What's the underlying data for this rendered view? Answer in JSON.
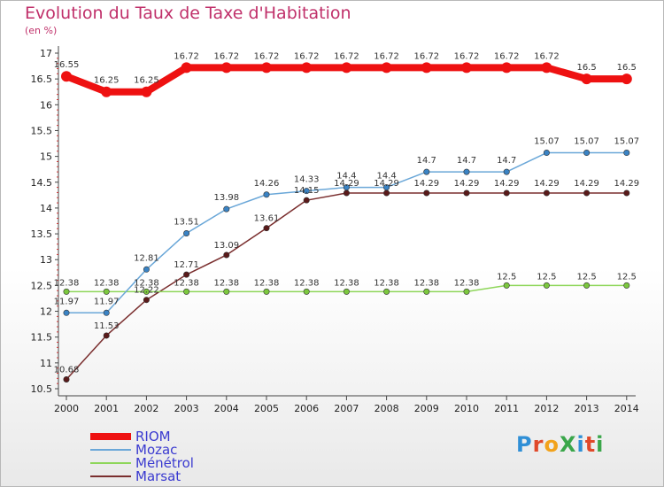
{
  "title": "Evolution du Taux de Taxe d'Habitation",
  "subtitle": "(en %)",
  "logo_text": "ProXiti",
  "logo_colors": [
    "#2f8fd6",
    "#e0492a",
    "#f2a21b",
    "#3aa64a",
    "#2f8fd6",
    "#e0492a",
    "#3aa64a"
  ],
  "chart_data": {
    "type": "line",
    "title": "Evolution du Taux de Taxe d'Habitation",
    "subtitle": "(en %)",
    "xlabel": "",
    "ylabel": "(en %)",
    "x": [
      "2000",
      "2001",
      "2002",
      "2003",
      "2004",
      "2005",
      "2006",
      "2007",
      "2008",
      "2009",
      "2010",
      "2011",
      "2012",
      "2013",
      "2014"
    ],
    "ylim": [
      10.5,
      17
    ],
    "yticks": [
      "10.5",
      "11",
      "11.5",
      "12",
      "12.5",
      "13",
      "13.5",
      "14",
      "14.5",
      "15",
      "15.5",
      "16",
      "16.5",
      "17"
    ],
    "grid": false,
    "legend_position": "bottom-left",
    "series": [
      {
        "name": "RIOM",
        "color": "#ee1111",
        "values": [
          16.55,
          16.25,
          16.25,
          16.72,
          16.72,
          16.72,
          16.72,
          16.72,
          16.72,
          16.72,
          16.72,
          16.72,
          16.72,
          16.5,
          16.5
        ],
        "labels": [
          "16.55",
          "16.25",
          "16.25",
          "16.72",
          "16.72",
          "16.72",
          "16.72",
          "16.72",
          "16.72",
          "16.72",
          "16.72",
          "16.72",
          "16.72",
          "16.5",
          "16.5"
        ]
      },
      {
        "name": "Mozac",
        "color": "#6aa7d8",
        "values": [
          11.97,
          11.97,
          12.81,
          13.51,
          13.98,
          14.26,
          14.33,
          14.4,
          14.4,
          14.7,
          14.7,
          14.7,
          15.07,
          15.07,
          15.07
        ],
        "labels": [
          "11.97",
          "11.97",
          "12.81",
          "13.51",
          "13.98",
          "14.26",
          "14.33",
          "14.4",
          "14.4",
          "14.7",
          "14.7",
          "14.7",
          "15.07",
          "15.07",
          "15.07"
        ]
      },
      {
        "name": "Ménétrol",
        "color": "#8ed65a",
        "values": [
          12.38,
          12.38,
          12.38,
          12.38,
          12.38,
          12.38,
          12.38,
          12.38,
          12.38,
          12.38,
          12.38,
          12.5,
          12.5,
          12.5,
          12.5
        ],
        "labels": [
          "12.38",
          "12.38",
          "12.38",
          "12.38",
          "12.38",
          "12.38",
          "12.38",
          "12.38",
          "12.38",
          "12.38",
          "12.38",
          "12.5",
          "12.5",
          "12.5",
          "12.5"
        ]
      },
      {
        "name": "Marsat",
        "color": "#7a2e2e",
        "values": [
          10.68,
          11.53,
          12.22,
          12.71,
          13.09,
          13.61,
          14.15,
          14.29,
          14.29,
          14.29,
          14.29,
          14.29,
          14.29,
          14.29,
          14.29
        ],
        "labels": [
          "10.68",
          "11.53",
          "12.22",
          "12.71",
          "13.09",
          "13.61",
          "14.15",
          "14.29",
          "14.29",
          "14.29",
          "14.29",
          "14.29",
          "14.29",
          "14.29",
          "14.29"
        ]
      }
    ]
  }
}
